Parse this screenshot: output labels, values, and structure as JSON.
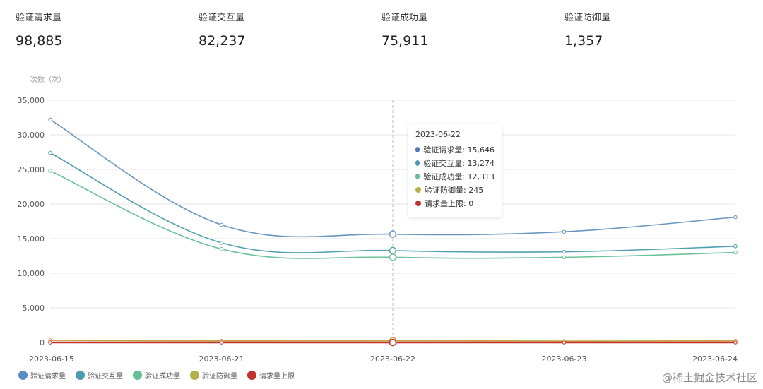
{
  "stats": [
    {
      "label": "验证请求量",
      "value": "98,885"
    },
    {
      "label": "验证交互量",
      "value": "82,237"
    },
    {
      "label": "验证成功量",
      "value": "75,911"
    },
    {
      "label": "验证防御量",
      "value": "1,357"
    }
  ],
  "tooltip": {
    "date": "2023-06-22",
    "rows": [
      {
        "text": "验证请求量: 15,646",
        "color": "#4e79b4"
      },
      {
        "text": "验证交互量: 13,274",
        "color": "#4a9ab0"
      },
      {
        "text": "验证成功量: 12,313",
        "color": "#63bf95"
      },
      {
        "text": "验证防御量: 245",
        "color": "#b2b24a"
      },
      {
        "text": "请求量上限: 0",
        "color": "#c0332b"
      }
    ]
  },
  "watermark": "@稀土掘金技术社区",
  "chart_data": {
    "type": "line",
    "ylabel": "次数（次）",
    "categories": [
      "2023-06-15",
      "2023-06-21",
      "2023-06-22",
      "2023-06-23",
      "2023-06-24"
    ],
    "ylim": [
      0,
      35000
    ],
    "yticks": [
      0,
      5000,
      10000,
      15000,
      20000,
      25000,
      30000,
      35000
    ],
    "ytick_labels": [
      "0",
      "5,000",
      "10,000",
      "15,000",
      "20,000",
      "25,000",
      "30,000",
      "35,000"
    ],
    "highlight_category": "2023-06-22",
    "series": [
      {
        "name": "验证请求量",
        "color": "#5b8cc8",
        "line": "#6b95bf",
        "values": [
          32200,
          17000,
          15646,
          16000,
          18100
        ]
      },
      {
        "name": "验证交互量",
        "color": "#4a9ab0",
        "line": "#4f9fb0",
        "values": [
          27400,
          14400,
          13274,
          13100,
          13900
        ]
      },
      {
        "name": "验证成功量",
        "color": "#63bf95",
        "line": "#6cc29a",
        "values": [
          24800,
          13500,
          12313,
          12300,
          13000
        ]
      },
      {
        "name": "验证防御量",
        "color": "#b2b24a",
        "line": "#c7a23e",
        "values": [
          300,
          220,
          245,
          200,
          230
        ]
      },
      {
        "name": "请求量上限",
        "color": "#c0332b",
        "line": "#c0332b",
        "values": [
          0,
          0,
          0,
          0,
          0
        ]
      }
    ],
    "legend_position": "bottom-left"
  }
}
